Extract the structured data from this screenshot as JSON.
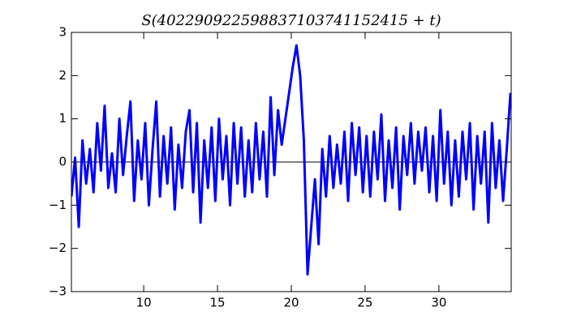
{
  "chart_data": {
    "type": "line",
    "title": "S(402290922598837103741152415 + t)",
    "x": [
      5.1,
      5.35,
      5.6,
      5.85,
      6.1,
      6.35,
      6.6,
      6.85,
      7.1,
      7.35,
      7.6,
      7.85,
      8.1,
      8.35,
      8.6,
      8.85,
      9.1,
      9.35,
      9.6,
      9.85,
      10.1,
      10.35,
      10.6,
      10.85,
      11.1,
      11.35,
      11.6,
      11.85,
      12.1,
      12.35,
      12.6,
      12.85,
      13.1,
      13.35,
      13.6,
      13.85,
      14.1,
      14.35,
      14.6,
      14.85,
      15.1,
      15.35,
      15.6,
      15.85,
      16.1,
      16.35,
      16.6,
      16.85,
      17.1,
      17.35,
      17.6,
      17.85,
      18.1,
      18.35,
      18.6,
      18.85,
      19.1,
      19.35,
      19.6,
      19.85,
      20.1,
      20.35,
      20.6,
      20.85,
      21.1,
      21.35,
      21.6,
      21.85,
      22.1,
      22.35,
      22.6,
      22.85,
      23.1,
      23.35,
      23.6,
      23.85,
      24.1,
      24.35,
      24.6,
      24.85,
      25.1,
      25.35,
      25.6,
      25.85,
      26.1,
      26.35,
      26.6,
      26.85,
      27.1,
      27.35,
      27.6,
      27.85,
      28.1,
      28.35,
      28.6,
      28.85,
      29.1,
      29.35,
      29.6,
      29.85,
      30.1,
      30.35,
      30.6,
      30.85,
      31.1,
      31.35,
      31.6,
      31.85,
      32.1,
      32.35,
      32.6,
      32.85,
      33.1,
      33.35,
      33.6,
      33.85,
      34.1,
      34.35,
      34.6,
      34.85
    ],
    "series": [
      {
        "color": "#0000ff",
        "values": [
          -0.8,
          0.1,
          -1.5,
          0.5,
          -0.5,
          0.3,
          -0.7,
          0.9,
          -0.2,
          1.3,
          -0.6,
          0.2,
          -0.7,
          1.0,
          -0.3,
          0.6,
          1.4,
          -0.9,
          0.5,
          -0.4,
          0.9,
          -1.0,
          0.3,
          1.4,
          -0.8,
          0.6,
          -0.5,
          0.8,
          -1.1,
          0.4,
          -0.6,
          0.7,
          1.2,
          -0.7,
          0.9,
          -1.4,
          0.5,
          -0.6,
          0.8,
          -0.9,
          1.0,
          -0.4,
          0.6,
          -1.0,
          0.9,
          -0.5,
          0.8,
          -0.8,
          0.5,
          -0.7,
          0.9,
          -0.4,
          0.7,
          -0.8,
          1.5,
          -0.3,
          1.2,
          0.4,
          1.0,
          1.6,
          2.2,
          2.7,
          2.0,
          0.5,
          -2.6,
          -1.5,
          -0.4,
          -1.9,
          0.3,
          -0.8,
          0.6,
          -0.6,
          0.4,
          -0.5,
          0.7,
          -0.9,
          0.9,
          -0.3,
          0.8,
          -0.7,
          0.6,
          -0.8,
          0.7,
          -0.4,
          1.1,
          -0.9,
          0.5,
          -0.6,
          0.8,
          -1.1,
          0.6,
          -0.3,
          0.9,
          -0.5,
          0.7,
          -0.2,
          0.8,
          -0.7,
          0.6,
          -0.9,
          1.2,
          -0.5,
          0.7,
          -1.0,
          0.5,
          -0.8,
          0.7,
          -0.4,
          0.9,
          -1.1,
          0.6,
          -0.5,
          0.7,
          -1.4,
          0.9,
          -0.6,
          0.5,
          -0.9,
          0.3,
          1.6
        ]
      }
    ],
    "hline": {
      "value": 0,
      "color": "#000000"
    },
    "xlim": [
      5.1,
      34.9
    ],
    "ylim": [
      -3,
      3
    ],
    "xticks": [
      10,
      15,
      20,
      25,
      30
    ],
    "yticks": [
      {
        "value": -3,
        "label": "−3"
      },
      {
        "value": -2,
        "label": "−2"
      },
      {
        "value": -1,
        "label": "−1"
      },
      0,
      1,
      2,
      3
    ]
  }
}
